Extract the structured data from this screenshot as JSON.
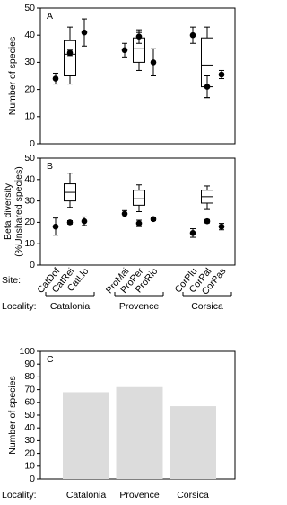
{
  "chart_data": [
    {
      "type": "box",
      "label": "A",
      "y_label": "Number of species",
      "ylim": [
        0,
        50
      ],
      "yticks": [
        0,
        10,
        20,
        30,
        40,
        50
      ],
      "values": [
        24,
        33.5,
        41,
        34.5,
        39.5,
        30,
        40,
        21,
        25.5
      ],
      "errors": [
        2,
        1,
        5,
        2.5,
        2.5,
        5,
        3,
        4,
        1.5
      ],
      "boxes": [
        {
          "whislo": 22,
          "q1": 25,
          "med": 33,
          "q3": 38,
          "whishi": 43
        },
        {
          "whislo": 27,
          "q1": 30,
          "med": 35,
          "q3": 39,
          "whishi": 41
        },
        {
          "whislo": 17,
          "q1": 21,
          "med": 29,
          "q3": 39,
          "whishi": 43
        }
      ]
    },
    {
      "type": "box",
      "label": "B",
      "y_label": [
        "Beta diversity",
        "(%Unshared species)"
      ],
      "ylim": [
        0,
        50
      ],
      "yticks": [
        0,
        10,
        20,
        30,
        40,
        50
      ],
      "site_label": "Site:",
      "x_label": "Locality:",
      "categories": [
        "CatDof",
        "CatRei",
        "CatLlo",
        "ProMai",
        "ProPer",
        "ProRio",
        "CorPlu",
        "CorPal",
        "CorPas"
      ],
      "groups": [
        "Catalonia",
        "Provence",
        "Corsica"
      ],
      "values": [
        18,
        20,
        20.5,
        24,
        19.5,
        21.5,
        15,
        20.5,
        18
      ],
      "errors": [
        4,
        0.8,
        2,
        1.5,
        1.5,
        0.7,
        2,
        0.8,
        1.5
      ],
      "boxes": [
        {
          "whislo": 27,
          "q1": 30,
          "med": 34,
          "q3": 38,
          "whishi": 43
        },
        {
          "whislo": 25,
          "q1": 28,
          "med": 31,
          "q3": 35,
          "whishi": 37.5
        },
        {
          "whislo": 26,
          "q1": 29,
          "med": 32,
          "q3": 35,
          "whishi": 37
        }
      ]
    },
    {
      "type": "bar",
      "label": "C",
      "y_label": "Number of species",
      "x_label": "Locality:",
      "categories": [
        "Catalonia",
        "Provence",
        "Corsica"
      ],
      "values": [
        68,
        72,
        57
      ],
      "color": "#dcdcdc",
      "ylim": [
        0,
        100
      ],
      "yticks": [
        0,
        10,
        20,
        30,
        40,
        50,
        60,
        70,
        80,
        90,
        100
      ]
    }
  ]
}
